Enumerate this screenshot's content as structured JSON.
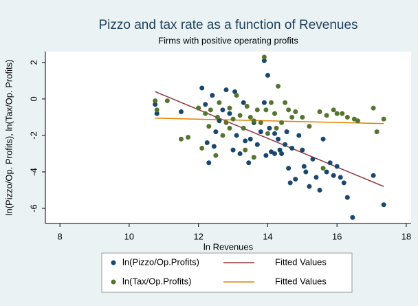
{
  "chart_data": {
    "type": "scatter",
    "title": "Pizzo and tax rate as a function of Revenues",
    "subtitle": "Firms with positive operating profits",
    "x_label": "ln Revenues",
    "y_label": "ln(Pizzo/Op. Profits), ln(Tax/Op. Profits)",
    "xlim": [
      7.58,
      18.14
    ],
    "ylim": [
      -6.83,
      2.6
    ],
    "xticks": [
      8,
      10,
      12,
      14,
      16,
      18
    ],
    "yticks": [
      -6,
      -4,
      -2,
      0,
      2
    ],
    "series": [
      {
        "name": "ln(Pizzo/Op.Profits)",
        "mode": "markers",
        "color": "#1a476f",
        "x": [
          10.75,
          10.8,
          12.0,
          12.1,
          12.2,
          12.25,
          12.3,
          12.45,
          12.5,
          12.6,
          12.7,
          12.8,
          12.9,
          13.0,
          13.05,
          13.1,
          13.2,
          13.3,
          13.35,
          13.45,
          13.5,
          13.6,
          13.7,
          13.8,
          13.9,
          13.95,
          14.0,
          14.05,
          14.1,
          14.2,
          14.3,
          14.35,
          14.4,
          14.5,
          14.55,
          14.6,
          14.65,
          14.7,
          14.8,
          14.9,
          15.0,
          15.05,
          15.1,
          15.2,
          15.3,
          15.4,
          15.5,
          15.6,
          15.7,
          15.8,
          15.9,
          16.0,
          16.1,
          16.2,
          16.3,
          16.45,
          17.05,
          17.35,
          13.9,
          14.2,
          11.5,
          12.4
        ],
        "values": [
          -0.3,
          -0.8,
          -0.5,
          0.6,
          -0.3,
          -2.4,
          -3.5,
          -2.6,
          -1.8,
          -1.2,
          -0.6,
          0.5,
          -0.8,
          -2.8,
          0.4,
          -2.0,
          -3.0,
          -0.2,
          -2.3,
          -3.5,
          -2.2,
          -1.3,
          -2.5,
          -1.8,
          2.1,
          -3.1,
          1.3,
          -1.6,
          -2.9,
          -3.0,
          -2.2,
          -2.8,
          -3.0,
          -2.5,
          -1.8,
          -3.8,
          -4.6,
          -2.7,
          -4.4,
          -2.0,
          -2.8,
          -3.7,
          -4.0,
          -4.8,
          -3.3,
          -4.3,
          -5.0,
          -2.2,
          -4.0,
          -3.5,
          -4.2,
          -3.7,
          -4.3,
          -4.6,
          -5.4,
          -6.5,
          -4.2,
          -5.8,
          -0.2,
          -1.9,
          -0.7,
          0.2
        ]
      },
      {
        "name": "Fitted Values",
        "mode": "line",
        "color": "#90353b",
        "x": [
          10.75,
          17.35
        ],
        "values": [
          0.4,
          -4.8
        ]
      },
      {
        "name": "ln(Tax/Op.Profits)",
        "mode": "markers",
        "color": "#55752f",
        "x": [
          10.75,
          10.8,
          11.1,
          11.5,
          11.7,
          12.0,
          12.1,
          12.2,
          12.3,
          12.35,
          12.5,
          12.55,
          12.6,
          12.7,
          12.8,
          12.9,
          13.0,
          13.1,
          13.2,
          13.3,
          13.35,
          13.4,
          13.5,
          13.6,
          13.7,
          13.8,
          13.9,
          13.95,
          14.0,
          14.1,
          14.2,
          14.25,
          14.3,
          14.4,
          14.5,
          14.6,
          14.7,
          14.8,
          15.0,
          15.2,
          15.5,
          15.7,
          15.9,
          16.0,
          16.15,
          16.3,
          16.5,
          16.6,
          17.05,
          17.15,
          17.35,
          15.6,
          13.6,
          12.9
        ],
        "values": [
          -0.1,
          -0.6,
          -0.1,
          -2.2,
          -2.1,
          -0.5,
          -2.7,
          -0.8,
          -1.5,
          -0.6,
          -3.1,
          -1.0,
          -0.2,
          -2.0,
          -1.3,
          -0.5,
          -1.1,
          0.2,
          -0.9,
          -1.6,
          -2.8,
          -0.4,
          -1.0,
          -3.2,
          -0.6,
          -1.3,
          2.3,
          -0.6,
          -1.9,
          -0.2,
          -0.8,
          -1.6,
          0.7,
          -1.3,
          -0.2,
          -0.6,
          -1.0,
          -0.7,
          -1.0,
          -1.5,
          -0.7,
          -0.9,
          -0.6,
          -0.8,
          -0.8,
          -1.0,
          -1.1,
          -1.2,
          -0.5,
          -1.8,
          -1.1,
          -3.8,
          -1.2,
          -1.6
        ]
      },
      {
        "name": "Fitted Values",
        "mode": "line",
        "color": "#e37e00",
        "x": [
          10.75,
          17.35
        ],
        "values": [
          -1.05,
          -1.35
        ]
      }
    ]
  }
}
